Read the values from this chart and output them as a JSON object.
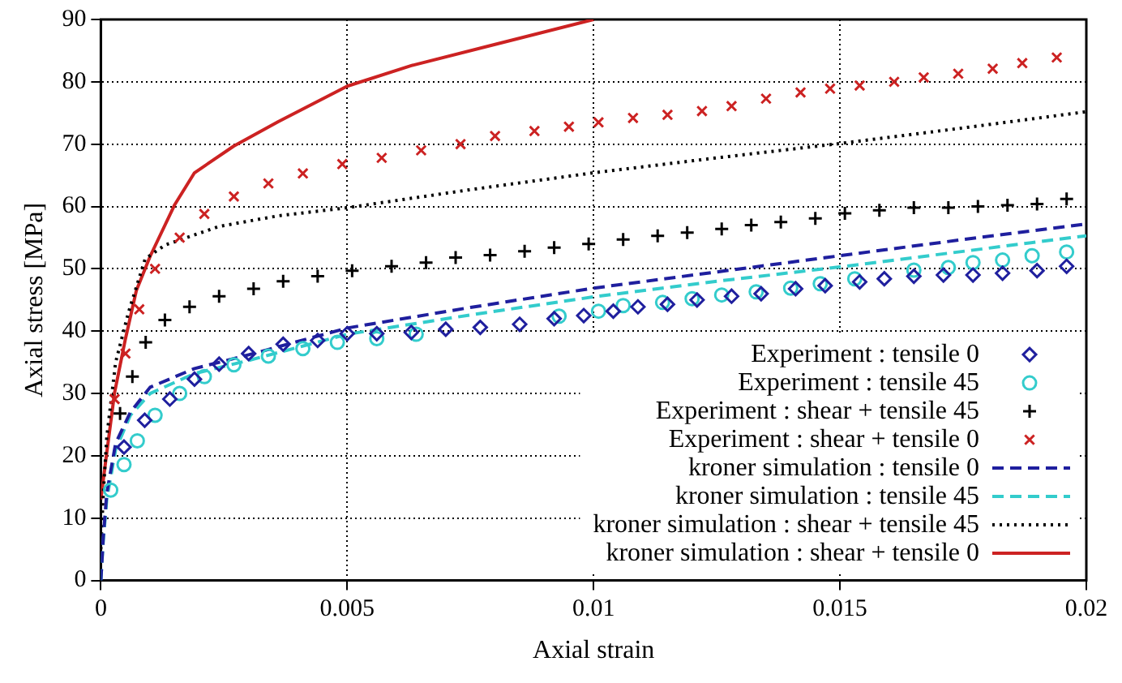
{
  "chart_data": {
    "type": "line",
    "xlabel": "Axial strain",
    "ylabel": "Axial stress [MPa]",
    "xlim": [
      0,
      0.02
    ],
    "xticks": [
      0,
      0.005,
      0.01,
      0.015,
      0.02
    ],
    "ylim": [
      0,
      90
    ],
    "yticks": [
      0,
      10,
      20,
      30,
      40,
      50,
      60,
      70,
      80,
      90
    ],
    "grid": true,
    "legend": "bottom right",
    "series": [
      {
        "name": "Experiment : tensile 0",
        "type": "scatter",
        "marker": "diamond",
        "color": "#1f1f9e",
        "x": [
          0.00047,
          0.00089,
          0.0014,
          0.0019,
          0.0024,
          0.003,
          0.0037,
          0.0044,
          0.005,
          0.0056,
          0.0063,
          0.007,
          0.0077,
          0.0085,
          0.0092,
          0.0098,
          0.0104,
          0.0109,
          0.0115,
          0.0121,
          0.0128,
          0.0134,
          0.0141,
          0.0147,
          0.0154,
          0.0159,
          0.0165,
          0.0171,
          0.0177,
          0.0183,
          0.019,
          0.0196
        ],
        "values": [
          21.4,
          25.7,
          29.1,
          32.3,
          34.7,
          36.4,
          37.9,
          38.5,
          39.6,
          39.6,
          39.8,
          40.3,
          40.6,
          41.1,
          42,
          42.5,
          43.2,
          43.9,
          44.3,
          45,
          45.6,
          46,
          46.8,
          47.3,
          47.9,
          48.4,
          48.8,
          49,
          49,
          49.3,
          49.7,
          50.4
        ]
      },
      {
        "name": "Experiment : tensile 45",
        "type": "scatter",
        "marker": "circle",
        "color": "#33cccc",
        "x": [
          0.0002,
          0.00047,
          0.00074,
          0.0011,
          0.0016,
          0.0021,
          0.0027,
          0.0034,
          0.0041,
          0.0048,
          0.0056,
          0.0064,
          0.0093,
          0.0101,
          0.0106,
          0.0114,
          0.012,
          0.0126,
          0.0133,
          0.014,
          0.0146,
          0.0153,
          0.0165,
          0.0172,
          0.0177,
          0.0183,
          0.0189,
          0.0196
        ],
        "values": [
          14.5,
          18.6,
          22.4,
          26.5,
          30,
          32.7,
          34.6,
          36,
          37.2,
          38.2,
          38.8,
          39.5,
          42.4,
          43.2,
          44.1,
          44.6,
          45.2,
          45.8,
          46.3,
          46.9,
          47.6,
          48.4,
          49.8,
          50.2,
          51,
          51.4,
          52.1,
          52.7
        ]
      },
      {
        "name": "Experiment : shear + tensile 45",
        "type": "scatter",
        "marker": "cross",
        "color": "#000000",
        "x": [
          0.00039,
          0.00064,
          0.00091,
          0.0013,
          0.0018,
          0.0024,
          0.0031,
          0.0037,
          0.0044,
          0.0051,
          0.0059,
          0.0066,
          0.0072,
          0.0079,
          0.0086,
          0.0092,
          0.0099,
          0.0106,
          0.0113,
          0.0119,
          0.0126,
          0.0132,
          0.0138,
          0.0145,
          0.0151,
          0.0158,
          0.0165,
          0.0172,
          0.0178,
          0.0184,
          0.019,
          0.0196
        ],
        "values": [
          26.8,
          32.7,
          38.2,
          41.8,
          43.9,
          45.6,
          46.8,
          48,
          48.8,
          49.7,
          50.4,
          51,
          51.8,
          52.2,
          52.8,
          53.4,
          54,
          54.7,
          55.3,
          55.8,
          56.4,
          57,
          57.5,
          58.1,
          58.9,
          59.4,
          59.8,
          59.8,
          60,
          60.2,
          60.4,
          61.2
        ]
      },
      {
        "name": "Experiment : shear + tensile 0",
        "type": "scatter",
        "marker": "x",
        "color": "#cc2222",
        "x": [
          0.00028,
          0.0005,
          0.00078,
          0.0011,
          0.0016,
          0.0021,
          0.0027,
          0.0034,
          0.0041,
          0.0049,
          0.0057,
          0.0065,
          0.0073,
          0.008,
          0.0088,
          0.0095,
          0.0101,
          0.0108,
          0.0115,
          0.0122,
          0.0128,
          0.0135,
          0.0142,
          0.0148,
          0.0154,
          0.0161,
          0.0167,
          0.0174,
          0.0181,
          0.0187,
          0.0194
        ],
        "values": [
          29.1,
          36.4,
          43.5,
          50,
          55,
          58.8,
          61.6,
          63.7,
          65.3,
          66.8,
          67.8,
          69,
          70,
          71.3,
          72.1,
          72.8,
          73.5,
          74.2,
          74.7,
          75.3,
          76.1,
          77.3,
          78.3,
          78.9,
          79.4,
          80,
          80.7,
          81.3,
          82.1,
          83,
          83.9
        ]
      },
      {
        "name": "kroner simulation : tensile 0",
        "type": "line",
        "marker": "none",
        "line_style": "dashed",
        "color": "#1f1f9e",
        "x": [
          0,
          5e-05,
          0.00012,
          0.0003,
          0.0006,
          0.001,
          0.0019,
          0.003,
          0.005,
          0.0075,
          0.01,
          0.0125,
          0.015,
          0.0175,
          0.02
        ],
        "values": [
          0,
          7,
          14,
          22,
          27,
          31,
          34,
          36.2,
          40.5,
          43.8,
          46.9,
          49.5,
          52.1,
          54.7,
          57.2
        ]
      },
      {
        "name": "kroner simulation : tensile 45",
        "type": "line",
        "marker": "none",
        "line_style": "dashed",
        "color": "#33cccc",
        "x": [
          0,
          5e-05,
          0.00012,
          0.0003,
          0.0006,
          0.001,
          0.0019,
          0.003,
          0.005,
          0.0075,
          0.01,
          0.0125,
          0.015,
          0.0175,
          0.02
        ],
        "values": [
          0,
          6.5,
          13,
          21,
          26.5,
          30,
          33.2,
          35.3,
          39.5,
          42.6,
          45.5,
          48,
          50.3,
          52.8,
          55.3
        ]
      },
      {
        "name": "kroner simulation : shear + tensile 45",
        "type": "line",
        "marker": "none",
        "line_style": "dotted",
        "color": "#000000",
        "x": [
          0,
          5e-05,
          0.00012,
          0.0003,
          0.00056,
          0.0009,
          0.0013,
          0.0024,
          0.0036,
          0.005,
          0.0075,
          0.01,
          0.0125,
          0.015,
          0.0175,
          0.02
        ],
        "values": [
          5,
          14,
          23,
          35,
          43,
          51.6,
          53.8,
          56.8,
          58.5,
          59.8,
          62.7,
          65.4,
          67.8,
          70.1,
          72.6,
          75.2
        ]
      },
      {
        "name": "kroner simulation : shear + tensile 0",
        "type": "line",
        "marker": "none",
        "line_style": "solid",
        "color": "#cc2222",
        "x": [
          0,
          0.00011,
          0.00028,
          0.0005,
          0.00072,
          0.001,
          0.0015,
          0.0019,
          0.0027,
          0.0036,
          0.005,
          0.0063,
          0.008,
          0.01
        ],
        "values": [
          13,
          19.9,
          30.2,
          38.8,
          46.5,
          52,
          60.3,
          65.4,
          69.7,
          73.6,
          79.3,
          82.6,
          86,
          90
        ]
      }
    ]
  }
}
